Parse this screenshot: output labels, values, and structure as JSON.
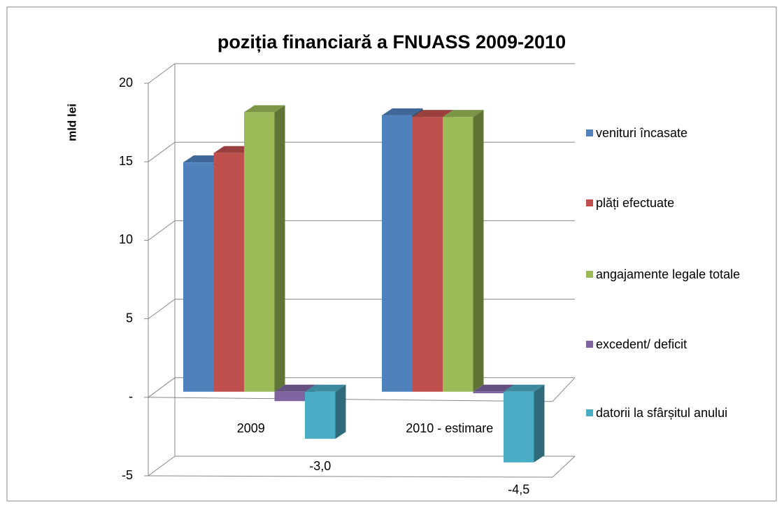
{
  "chart_data": {
    "type": "bar3d",
    "title": "poziția financiară a FNUASS 2009-2010",
    "y_label": "mld lei",
    "categories": [
      "2009",
      "2010 - estimare"
    ],
    "series": [
      {
        "name": "venituri încasate",
        "color": "#4f81bd",
        "values": [
          14.6,
          17.6
        ]
      },
      {
        "name": "plăți efectuate",
        "color": "#c0504d",
        "values": [
          15.2,
          17.5
        ]
      },
      {
        "name": "angajamente legale totale",
        "color": "#9bbb59",
        "values": [
          17.8,
          17.5
        ]
      },
      {
        "name": "excedent/ deficit",
        "color": "#8064a2",
        "values": [
          -0.6,
          -0.1
        ]
      },
      {
        "name": "datorii la sfârșitul anului",
        "color": "#4bacc6",
        "values": [
          -3.0,
          -4.5
        ],
        "value_labels": [
          "-3,0",
          "-4,5"
        ]
      }
    ],
    "ylim": [
      -5,
      20
    ],
    "yticks": [
      -5,
      {
        "value": 0,
        "label": "-"
      },
      5,
      10,
      15,
      20
    ],
    "grid": true,
    "legend": "right"
  }
}
